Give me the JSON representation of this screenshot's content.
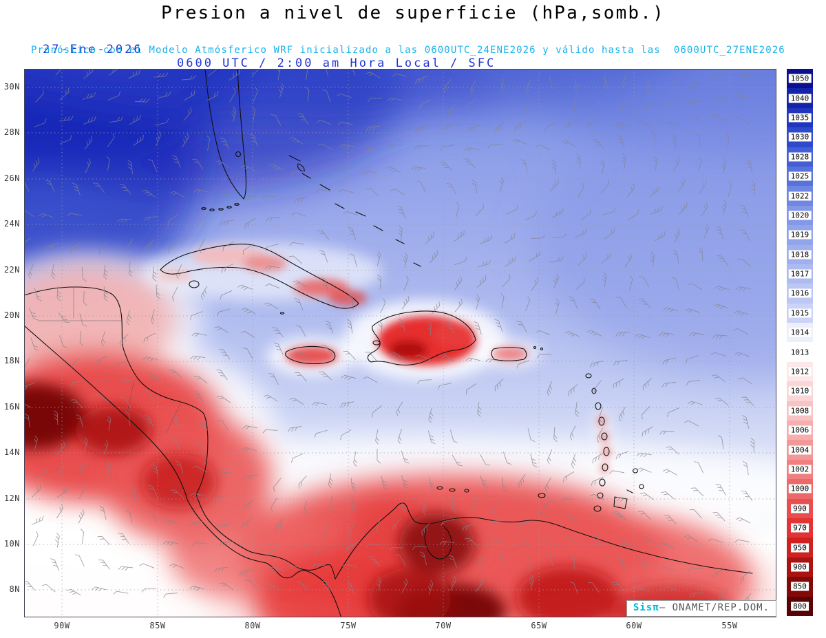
{
  "title": "Presion a nivel de superficie (hPa,somb.)",
  "header": {
    "date": "27-Ene-2026",
    "time_line": "0600 UTC / 2:00 am Hora Local / SFC",
    "forecast_line": "Pronóstico con el Modelo Atmósferico WRF inicializado a las 0600UTC_24ENE2026 y válido hasta las  0600UTC_27ENE2026"
  },
  "axes": {
    "lat_labels": [
      "30N",
      "28N",
      "26N",
      "24N",
      "22N",
      "20N",
      "18N",
      "16N",
      "14N",
      "12N",
      "10N",
      "8N"
    ],
    "lon_labels": [
      "90W",
      "85W",
      "80W",
      "75W",
      "70W",
      "65W",
      "60W",
      "55W"
    ]
  },
  "colorbar": {
    "unit": "hPa",
    "values": [
      "1050",
      "1040",
      "1035",
      "1030",
      "1028",
      "1025",
      "1022",
      "1020",
      "1019",
      "1018",
      "1017",
      "1016",
      "1015",
      "1014",
      "1013",
      "1012",
      "1010",
      "1008",
      "1006",
      "1004",
      "1002",
      "1000",
      "990",
      "970",
      "950",
      "900",
      "850",
      "800"
    ],
    "colors": [
      "#0b0e8e",
      "#1523a8",
      "#2136be",
      "#2f49cc",
      "#435ed6",
      "#5872dc",
      "#6f86e2",
      "#8498e8",
      "#92a4ea",
      "#a0b0ee",
      "#aebbf1",
      "#bcc7f3",
      "#cbd3f6",
      "#edeffb",
      "#ffffff",
      "#fce8e8",
      "#fad6d6",
      "#f8c3c3",
      "#f6aeae",
      "#f39797",
      "#f08080",
      "#ed6868",
      "#e84e4e",
      "#e23434",
      "#d02121",
      "#ab1313",
      "#830909",
      "#590404"
    ]
  },
  "watermark": {
    "brand": "Sisπ",
    "separator": "– ",
    "org": "ONAMET/REP.DOM."
  },
  "theme": {
    "title_color": "#000000",
    "datetime_blue": "#2334d0",
    "model_cyan": "#17b2ea",
    "axis_label_color": "#3a3a3a",
    "brand_cyan": "#00b8d4",
    "org_gray": "#555555"
  }
}
